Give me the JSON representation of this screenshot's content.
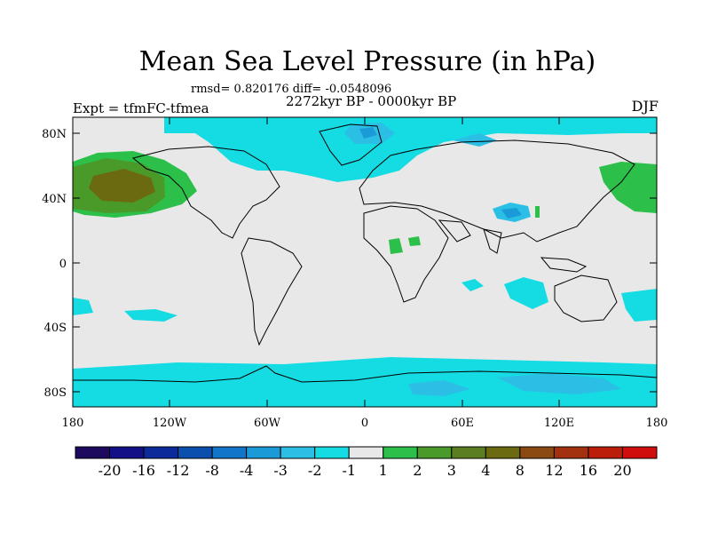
{
  "title": "Mean Sea Level Pressure (in hPa)",
  "stats": "rmsd= 0.820176 diff= -0.0548096",
  "period": "2272kyr BP - 0000kyr BP",
  "experiment": "Expt = tfmFC-tfmea",
  "season": "DJF",
  "map": {
    "lat_labels": [
      "80N",
      "40N",
      "0",
      "40S",
      "80S"
    ],
    "lon_labels": [
      "180",
      "120W",
      "60W",
      "0",
      "60E",
      "120E",
      "180"
    ],
    "background_color": "#e8e8e8"
  },
  "colorbar": {
    "labels": [
      "-20",
      "-16",
      "-12",
      "-8",
      "-4",
      "-3",
      "-2",
      "-1",
      "1",
      "2",
      "3",
      "4",
      "8",
      "12",
      "16",
      "20"
    ],
    "colors": [
      "#1d0a5e",
      "#130f86",
      "#0c2a9a",
      "#0a4fae",
      "#1175c8",
      "#1b9ad8",
      "#2cbfe6",
      "#15dbe3",
      "#e8e8e8",
      "#2cbf4a",
      "#4a9a2a",
      "#5b7f20",
      "#6b6a10",
      "#8a4a12",
      "#a3300e",
      "#bc1d0a",
      "#d10e0e"
    ]
  }
}
